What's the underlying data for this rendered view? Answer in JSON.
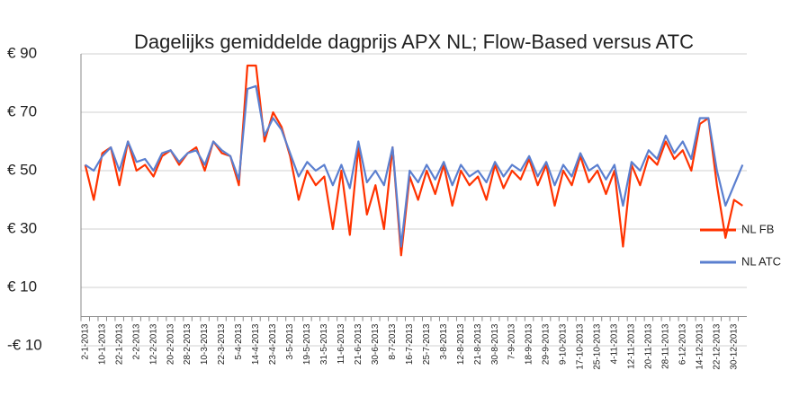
{
  "chart_data": {
    "type": "line",
    "title": "Dagelijks gemiddelde dagprijs APX NL; Flow-Based versus ATC",
    "categories": [
      "2-1-2013",
      null,
      "10-1-2013",
      null,
      "22-1-2013",
      null,
      "2-2-2013",
      null,
      "12-2-2013",
      null,
      "20-2-2013",
      null,
      "28-2-2013",
      null,
      "10-3-2013",
      null,
      "22-3-2013",
      null,
      "5-4-2013",
      null,
      "14-4-2013",
      null,
      "23-4-2013",
      null,
      "3-5-2013",
      null,
      "19-5-2013",
      null,
      "31-5-2013",
      null,
      "11-6-2013",
      null,
      "21-6-2013",
      null,
      "30-6-2013",
      null,
      "8-7-2013",
      null,
      "16-7-2013",
      null,
      "25-7-2013",
      null,
      "3-8-2013",
      null,
      "12-8-2013",
      null,
      "21-8-2013",
      null,
      "30-8-2013",
      null,
      "7-9-2013",
      null,
      "18-9-2013",
      null,
      "29-9-2013",
      null,
      "9-10-2013",
      null,
      "17-10-2013",
      null,
      "25-10-2013",
      null,
      "4-11-2013",
      null,
      "12-11-2013",
      null,
      "20-11-2013",
      null,
      "28-11-2013",
      null,
      "6-12-2013",
      null,
      "14-12-2013",
      null,
      "22-12-2013",
      null,
      "30-12-2013",
      null
    ],
    "series": [
      {
        "name": "NL FB",
        "color": "#ff3300",
        "values": [
          52,
          40,
          56,
          58,
          45,
          60,
          50,
          52,
          48,
          55,
          57,
          52,
          56,
          58,
          50,
          60,
          56,
          55,
          45,
          86,
          86,
          60,
          70,
          65,
          55,
          40,
          50,
          45,
          48,
          30,
          50,
          28,
          58,
          35,
          45,
          30,
          58,
          21,
          48,
          40,
          50,
          42,
          52,
          38,
          50,
          45,
          48,
          40,
          52,
          44,
          50,
          47,
          54,
          45,
          52,
          38,
          50,
          45,
          55,
          46,
          50,
          42,
          50,
          24,
          52,
          45,
          55,
          52,
          60,
          54,
          57,
          50,
          66,
          68,
          45,
          27,
          40,
          38
        ]
      },
      {
        "name": "NL ATC",
        "color": "#5b7fcf",
        "values": [
          52,
          50,
          55,
          58,
          50,
          60,
          53,
          54,
          50,
          56,
          57,
          53,
          56,
          57,
          52,
          60,
          57,
          55,
          47,
          78,
          79,
          62,
          68,
          64,
          56,
          48,
          53,
          50,
          52,
          45,
          52,
          44,
          60,
          46,
          50,
          45,
          58,
          24,
          50,
          46,
          52,
          47,
          53,
          45,
          52,
          48,
          50,
          46,
          53,
          48,
          52,
          50,
          55,
          48,
          53,
          45,
          52,
          48,
          56,
          50,
          52,
          47,
          52,
          38,
          53,
          50,
          57,
          54,
          62,
          56,
          60,
          54,
          68,
          68,
          50,
          38,
          45,
          52
        ]
      }
    ],
    "ylim": [
      -10,
      90
    ],
    "yticks": [
      {
        "value": -10,
        "label": "-€ 10"
      },
      {
        "value": 10,
        "label": "€ 10"
      },
      {
        "value": 30,
        "label": "€ 30"
      },
      {
        "value": 50,
        "label": "€ 50"
      },
      {
        "value": 70,
        "label": "€ 70"
      },
      {
        "value": 90,
        "label": "€ 90"
      }
    ],
    "grid": true
  }
}
